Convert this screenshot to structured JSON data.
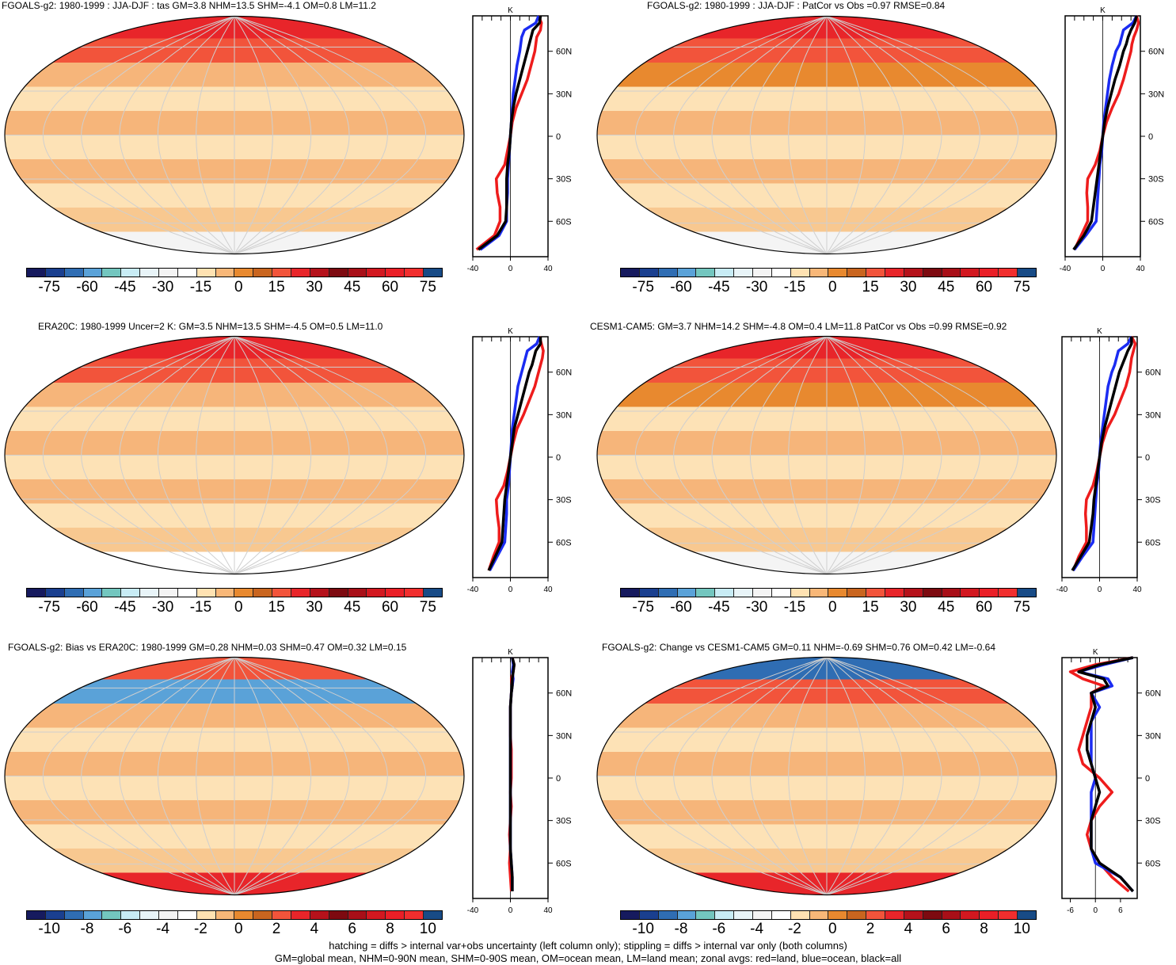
{
  "palette": [
    "#161a5e",
    "#1a3f8f",
    "#2f6db3",
    "#5aa2d8",
    "#73c6bf",
    "#c8ecf5",
    "#e8f4f8",
    "#f4f4f4",
    "#ffffff",
    "#ffe2b2",
    "#f8b778",
    "#e8892f",
    "#c9651f",
    "#f2543b",
    "#e8252a",
    "#b5121b",
    "#7d0a10",
    "#a80f18",
    "#d21820",
    "#ea1f27",
    "#f12e2e",
    "#184b86"
  ],
  "footer": {
    "line1": "hatching = diffs > internal var+obs uncertainty (left column only); stippling = diffs > internal var only (both columns)",
    "line2": "GM=global mean, NHM=0-90N mean, SHM=0-90S mean, OM=ocean mean, LM=land mean; zonal avgs: red=land, blue=ocean, black=all"
  },
  "chart_data": [
    {
      "type": "heatmap",
      "title": "FGOALS-g2: 1980-1999 : JJA-DJF : tas GM=3.8 NHM=13.5 SHM=-4.1 OM=0.8 LM=11.2",
      "colorbar_ticks": [
        "-75",
        "-60",
        "-45",
        "-30",
        "-15",
        "0",
        "15",
        "30",
        "45",
        "60",
        "75"
      ],
      "zonal": {
        "unit": "K",
        "xlim": [
          -40,
          40
        ],
        "x_ticks": [
          "-40",
          "0",
          "40"
        ],
        "lat_ticks": [
          "60N",
          "30N",
          "0",
          "30S",
          "60S"
        ],
        "lat": [
          85,
          80,
          75,
          70,
          65,
          60,
          50,
          40,
          30,
          20,
          10,
          0,
          -10,
          -20,
          -30,
          -40,
          -50,
          -60,
          -70,
          -80
        ],
        "land": [
          30,
          33,
          32,
          28,
          27,
          26,
          22,
          18,
          12,
          6,
          2,
          0,
          -3,
          -6,
          -15,
          -14,
          -11,
          -11,
          -17,
          -36
        ],
        "ocean": [
          30,
          27,
          15,
          12,
          11,
          10,
          7,
          5,
          3,
          2,
          1,
          0,
          -1,
          -2,
          -3,
          -3,
          -4,
          -4,
          -12,
          -32
        ],
        "all": [
          32,
          31,
          24,
          22,
          20,
          18,
          14,
          10,
          6,
          3,
          1,
          0,
          -1,
          -3,
          -4,
          -4,
          -4,
          -5,
          -14,
          -34
        ]
      }
    },
    {
      "type": "heatmap",
      "title": "FGOALS-g2: 1980-1999 : JJA-DJF : PatCor vs Obs =0.97 RMSE=0.84",
      "colorbar_ticks": [
        "-75",
        "-60",
        "-45",
        "-30",
        "-15",
        "0",
        "15",
        "30",
        "45",
        "60",
        "75"
      ],
      "zonal": {
        "unit": "K",
        "xlim": [
          -40,
          40
        ],
        "x_ticks": [
          "-40",
          "0",
          "40"
        ],
        "lat_ticks": [
          "60N",
          "30N",
          "0",
          "30S",
          "60S"
        ],
        "lat": [
          85,
          80,
          75,
          70,
          65,
          60,
          50,
          40,
          30,
          20,
          10,
          0,
          -10,
          -20,
          -30,
          -40,
          -50,
          -60,
          -70,
          -80
        ],
        "land": [
          36,
          38,
          36,
          33,
          31,
          30,
          26,
          22,
          17,
          10,
          4,
          0,
          -3,
          -8,
          -16,
          -17,
          -16,
          -16,
          -23,
          -30
        ],
        "ocean": [
          36,
          32,
          22,
          20,
          18,
          14,
          10,
          7,
          5,
          3,
          1,
          0,
          -1,
          -3,
          -4,
          -5,
          -6,
          -7,
          -18,
          -30
        ],
        "all": [
          36,
          34,
          30,
          27,
          25,
          22,
          18,
          13,
          9,
          5,
          2,
          0,
          -2,
          -4,
          -6,
          -8,
          -10,
          -12,
          -20,
          -31
        ]
      }
    },
    {
      "type": "heatmap",
      "title": "ERA20C: 1980-1999 Uncer=2 K: GM=3.5 NHM=13.5 SHM=-4.5 OM=0.5 LM=11.0",
      "colorbar_ticks": [
        "-75",
        "-60",
        "-45",
        "-30",
        "-15",
        "0",
        "15",
        "30",
        "45",
        "60",
        "75"
      ],
      "zonal": {
        "unit": "K",
        "xlim": [
          -40,
          40
        ],
        "x_ticks": [
          "-40",
          "0",
          "40"
        ],
        "lat_ticks": [
          "60N",
          "30N",
          "0",
          "30S",
          "60S"
        ],
        "lat": [
          85,
          80,
          75,
          70,
          65,
          60,
          50,
          40,
          30,
          20,
          10,
          0,
          -10,
          -20,
          -30,
          -40,
          -50,
          -60,
          -70,
          -80
        ],
        "land": [
          31,
          33,
          35,
          34,
          32,
          30,
          26,
          20,
          14,
          7,
          3,
          0,
          -3,
          -7,
          -15,
          -14,
          -12,
          -12,
          -18,
          -23
        ],
        "ocean": [
          31,
          28,
          18,
          16,
          14,
          12,
          8,
          6,
          4,
          2,
          1,
          0,
          -1,
          -2,
          -4,
          -4,
          -5,
          -6,
          -14,
          -22
        ],
        "all": [
          32,
          32,
          27,
          25,
          23,
          20,
          16,
          12,
          8,
          4,
          2,
          0,
          -2,
          -4,
          -6,
          -7,
          -8,
          -9,
          -16,
          -23
        ]
      }
    },
    {
      "type": "heatmap",
      "title": "CESM1-CAM5: GM=3.7 NHM=14.2 SHM=-4.8 OM=0.4 LM=11.8 PatCor vs Obs =0.99 RMSE=0.92",
      "colorbar_ticks": [
        "-75",
        "-60",
        "-45",
        "-30",
        "-15",
        "0",
        "15",
        "30",
        "45",
        "60",
        "75"
      ],
      "zonal": {
        "unit": "K",
        "xlim": [
          -40,
          40
        ],
        "x_ticks": [
          "-40",
          "0",
          "40"
        ],
        "lat_ticks": [
          "60N",
          "30N",
          "0",
          "30S",
          "60S"
        ],
        "lat": [
          85,
          80,
          75,
          70,
          65,
          60,
          50,
          40,
          30,
          20,
          10,
          0,
          -10,
          -20,
          -30,
          -40,
          -50,
          -60,
          -70,
          -80
        ],
        "land": [
          34,
          38,
          36,
          34,
          33,
          32,
          28,
          22,
          16,
          8,
          3,
          0,
          -3,
          -7,
          -14,
          -15,
          -14,
          -14,
          -22,
          -28
        ],
        "ocean": [
          34,
          30,
          20,
          18,
          16,
          13,
          9,
          7,
          5,
          3,
          1,
          0,
          -1,
          -3,
          -4,
          -5,
          -6,
          -7,
          -18,
          -28
        ],
        "all": [
          34,
          34,
          30,
          27,
          24,
          21,
          17,
          13,
          9,
          5,
          2,
          0,
          -2,
          -4,
          -6,
          -7,
          -9,
          -11,
          -20,
          -29
        ]
      }
    },
    {
      "type": "heatmap",
      "title": "FGOALS-g2: Bias vs ERA20C: 1980-1999 GM=0.28 NHM=0.03 SHM=0.47 OM=0.32 LM=0.15",
      "colorbar_ticks": [
        "-10",
        "-8",
        "-6",
        "-4",
        "-2",
        "0",
        "2",
        "4",
        "6",
        "8",
        "10"
      ],
      "zonal": {
        "unit": "K",
        "xlim": [
          -40,
          40
        ],
        "x_ticks": [
          "-40",
          "0",
          "40"
        ],
        "lat_ticks": [
          "60N",
          "30N",
          "0",
          "30S",
          "60S"
        ],
        "lat": [
          85,
          80,
          75,
          70,
          65,
          60,
          50,
          40,
          30,
          20,
          10,
          0,
          -10,
          -20,
          -30,
          -40,
          -50,
          -60,
          -70,
          -80
        ],
        "land": [
          2,
          4,
          3,
          1,
          2,
          1,
          0,
          0,
          0,
          1,
          1,
          1,
          0,
          1,
          0,
          -1,
          0,
          -1,
          0,
          1
        ],
        "ocean": [
          2,
          3,
          2,
          3,
          2,
          1,
          0,
          0,
          0,
          0,
          0,
          0,
          0,
          0,
          0,
          0,
          0,
          1,
          2,
          2
        ],
        "all": [
          2,
          4,
          3,
          2,
          2,
          1,
          0,
          0,
          0,
          0,
          0,
          0,
          0,
          0,
          0,
          0,
          0,
          1,
          2,
          2
        ]
      }
    },
    {
      "type": "heatmap",
      "title": "FGOALS-g2: Change vs CESM1-CAM5 GM=0.11 NHM=-0.69 SHM=0.76 OM=0.42 LM=-0.64",
      "colorbar_ticks": [
        "-10",
        "-8",
        "-6",
        "-4",
        "-2",
        "0",
        "2",
        "4",
        "6",
        "8",
        "10"
      ],
      "zonal": {
        "unit": "K",
        "xlim": [
          -8,
          10
        ],
        "x_ticks": [
          "-6",
          "0",
          "6"
        ],
        "lat_ticks": [
          "60N",
          "30N",
          "0",
          "30S",
          "60S"
        ],
        "lat": [
          85,
          80,
          75,
          70,
          65,
          60,
          50,
          40,
          30,
          20,
          10,
          0,
          -10,
          -20,
          -30,
          -40,
          -50,
          -60,
          -70,
          -80
        ],
        "land": [
          9,
          0,
          -6,
          -3,
          2,
          -1,
          -1,
          -2,
          -3,
          -4,
          -3,
          1,
          4,
          1,
          -1,
          -2,
          -1,
          1,
          4,
          8
        ],
        "ocean": [
          9,
          2,
          -4,
          3,
          4,
          -1,
          1,
          -1,
          -1,
          -1,
          -1,
          0,
          -1,
          -1,
          -1,
          -1,
          -1,
          0,
          6,
          9
        ],
        "all": [
          9,
          1,
          -4,
          2,
          3,
          -1,
          0,
          -1,
          -2,
          -2,
          -1,
          0,
          1,
          0,
          -1,
          -1,
          -1,
          1,
          6,
          9
        ]
      }
    }
  ]
}
